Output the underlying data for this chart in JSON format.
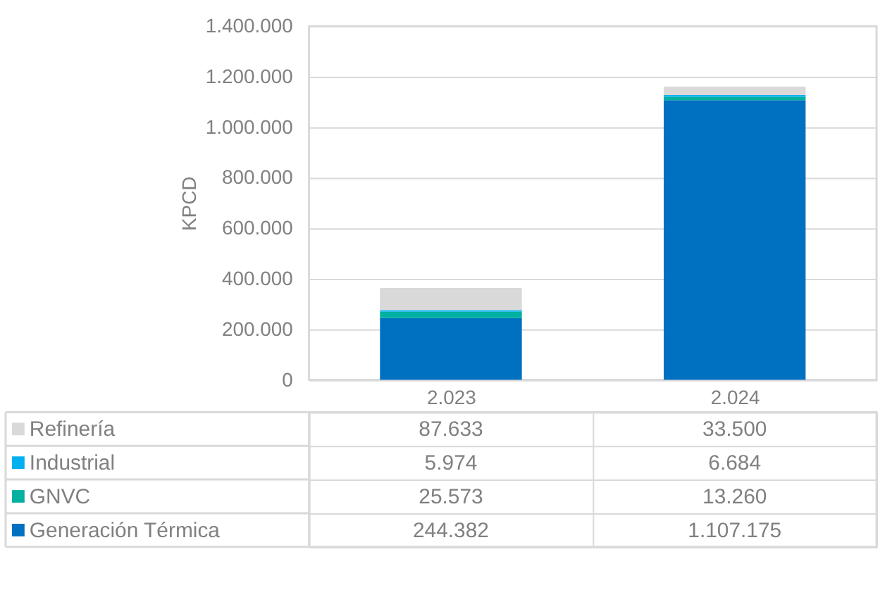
{
  "chart_data": {
    "type": "bar",
    "stacked": true,
    "ylabel": "KPCD",
    "categories": [
      "2.023",
      "2.024"
    ],
    "series": [
      {
        "name": "Generación Térmica",
        "color": "#0070c0",
        "values": [
          244382,
          1107175
        ],
        "value_labels": [
          "244.382",
          "1.107.175"
        ]
      },
      {
        "name": "GNVC",
        "color": "#00b0a0",
        "values": [
          25573,
          13260
        ],
        "value_labels": [
          "25.573",
          "13.260"
        ]
      },
      {
        "name": "Industrial",
        "color": "#00b0f0",
        "values": [
          5974,
          6684
        ],
        "value_labels": [
          "5.974",
          "6.684"
        ]
      },
      {
        "name": "Refinería",
        "color": "#d9d9d9",
        "values": [
          87633,
          33500
        ],
        "value_labels": [
          "87.633",
          "33.500"
        ]
      }
    ],
    "ylim": [
      0,
      1400000
    ],
    "yticks": [
      0,
      {
        "value": 200000,
        "label": "200.000"
      },
      {
        "value": 400000,
        "label": "400.000"
      },
      {
        "value": 600000,
        "label": "600.000"
      },
      {
        "value": 800000,
        "label": "800.000"
      },
      {
        "value": 1000000,
        "label": "1.000.000"
      },
      {
        "value": 1200000,
        "label": "1.200.000"
      },
      {
        "value": 1400000,
        "label": "1.400.000"
      }
    ],
    "grid": "y",
    "legend": "bottom"
  }
}
